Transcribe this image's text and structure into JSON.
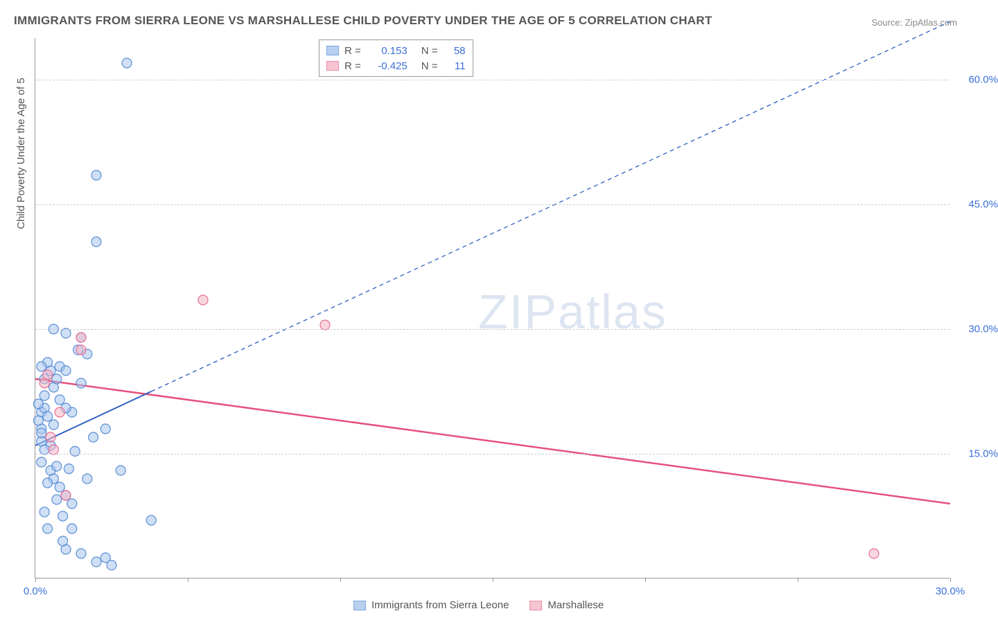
{
  "title": "IMMIGRANTS FROM SIERRA LEONE VS MARSHALLESE CHILD POVERTY UNDER THE AGE OF 5 CORRELATION CHART",
  "source_label": "Source: ZipAtlas.com",
  "y_axis_label": "Child Poverty Under the Age of 5",
  "watermark_a": "ZIP",
  "watermark_b": "atlas",
  "chart": {
    "type": "scatter",
    "xlim": [
      0,
      30
    ],
    "ylim": [
      0,
      65
    ],
    "x_ticks": [
      0,
      5,
      10,
      15,
      20,
      25,
      30
    ],
    "x_tick_labels": {
      "0": "0.0%",
      "30": "30.0%"
    },
    "y_grid": [
      15,
      30,
      45,
      60
    ],
    "y_tick_labels": {
      "15": "15.0%",
      "30": "30.0%",
      "45": "45.0%",
      "60": "60.0%"
    },
    "background_color": "#ffffff",
    "grid_color": "#cccccc",
    "axis_color": "#999999",
    "marker_radius": 7,
    "marker_stroke_width": 1.2,
    "series": [
      {
        "name": "Immigrants from Sierra Leone",
        "key": "sierra_leone",
        "fill": "#a7c5ec",
        "stroke": "#5b8fd6",
        "fill_opacity": 0.55,
        "r_value": "0.153",
        "n_value": "58",
        "trend": {
          "x1": 0,
          "y1": 16,
          "x2": 3.8,
          "y2": 22.5,
          "dashed_x2": 30,
          "dashed_y2": 67,
          "color": "#2b5fc0",
          "width": 2
        },
        "points": [
          [
            0.2,
            20
          ],
          [
            0.3,
            20.5
          ],
          [
            0.2,
            18
          ],
          [
            0.4,
            19.5
          ],
          [
            0.2,
            16.5
          ],
          [
            0.5,
            16
          ],
          [
            0.3,
            15.5
          ],
          [
            0.1,
            21
          ],
          [
            0.3,
            22
          ],
          [
            0.6,
            23
          ],
          [
            0.7,
            24
          ],
          [
            0.5,
            25
          ],
          [
            0.4,
            26
          ],
          [
            0.8,
            25.5
          ],
          [
            0.2,
            14
          ],
          [
            0.5,
            13
          ],
          [
            0.6,
            12
          ],
          [
            0.8,
            11
          ],
          [
            1.0,
            10
          ],
          [
            0.7,
            9.5
          ],
          [
            1.2,
            9
          ],
          [
            0.3,
            8
          ],
          [
            0.9,
            7.5
          ],
          [
            1.2,
            6
          ],
          [
            1.5,
            3
          ],
          [
            1.0,
            3.5
          ],
          [
            2.0,
            2
          ],
          [
            2.3,
            2.5
          ],
          [
            2.5,
            1.6
          ],
          [
            1.7,
            12
          ],
          [
            1.9,
            17
          ],
          [
            2.3,
            18
          ],
          [
            1.2,
            20
          ],
          [
            1.5,
            23.5
          ],
          [
            1.7,
            27
          ],
          [
            1.4,
            27.5
          ],
          [
            2.8,
            13
          ],
          [
            1.0,
            25
          ],
          [
            0.6,
            30
          ],
          [
            0.2,
            25.5
          ],
          [
            1.0,
            20.5
          ],
          [
            2.0,
            48.5
          ],
          [
            3.0,
            62
          ],
          [
            2.0,
            40.5
          ],
          [
            1.5,
            29
          ],
          [
            1.0,
            29.5
          ],
          [
            3.8,
            7
          ],
          [
            0.9,
            4.5
          ],
          [
            0.4,
            6
          ],
          [
            0.7,
            13.5
          ],
          [
            0.4,
            11.5
          ],
          [
            0.1,
            19
          ],
          [
            0.2,
            17.5
          ],
          [
            0.6,
            18.5
          ],
          [
            0.3,
            24
          ],
          [
            1.3,
            15.3
          ],
          [
            1.1,
            13.2
          ],
          [
            0.8,
            21.5
          ]
        ]
      },
      {
        "name": "Marshallese",
        "key": "marshallese",
        "fill": "#f4b6c6",
        "stroke": "#e76f93",
        "fill_opacity": 0.55,
        "r_value": "-0.425",
        "n_value": "11",
        "trend": {
          "x1": 0,
          "y1": 24,
          "x2": 30,
          "y2": 9,
          "color": "#e5517c",
          "width": 2.5
        },
        "points": [
          [
            0.3,
            23.5
          ],
          [
            0.5,
            17
          ],
          [
            0.6,
            15.5
          ],
          [
            0.8,
            20
          ],
          [
            1.0,
            10
          ],
          [
            1.5,
            29
          ],
          [
            1.5,
            27.5
          ],
          [
            5.5,
            33.5
          ],
          [
            9.5,
            30.5
          ],
          [
            27.5,
            3
          ],
          [
            0.4,
            24.5
          ]
        ]
      }
    ]
  },
  "legend_top": {
    "r_label": "R =",
    "n_label": "N ="
  },
  "legend_bottom": {
    "label_a": "Immigrants from Sierra Leone",
    "label_b": "Marshallese"
  }
}
